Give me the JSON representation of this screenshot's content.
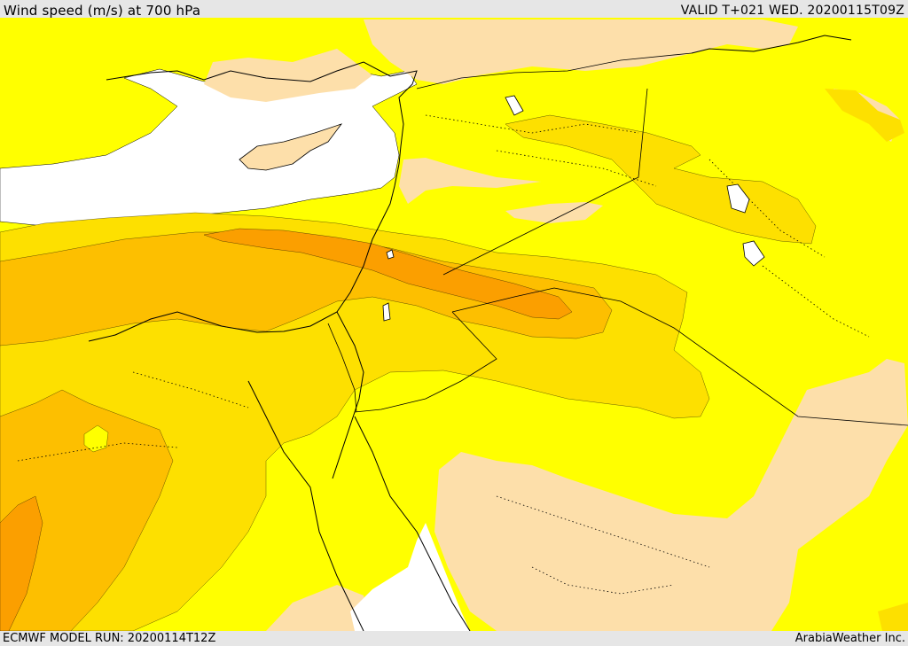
{
  "header": {
    "title": "Wind speed (m/s) at 700 hPa",
    "valid": "VALID T+021 WED. 20200115T09Z"
  },
  "footer": {
    "model_run": "ECMWF MODEL RUN: 20200114T12Z",
    "credit": "ArabiaWeather Inc."
  },
  "colors": {
    "sea_white": "#ffffff",
    "calm_tan": "#fddfaa",
    "yellow": "#ffff00",
    "gold": "#fde000",
    "amber": "#fdbf00",
    "orange": "#fb9f00",
    "boundary": "#000000"
  }
}
